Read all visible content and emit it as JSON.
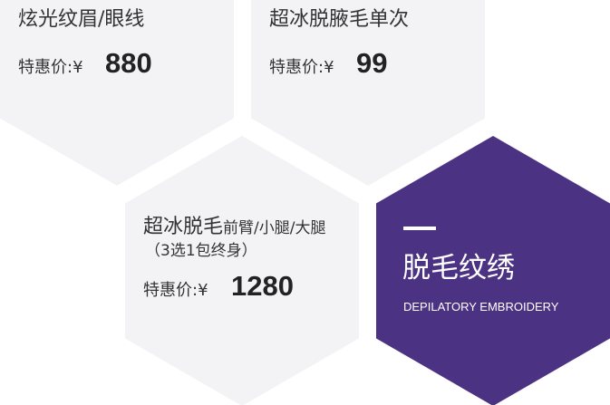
{
  "cards": [
    {
      "title": "炫光纹眉/眼线",
      "price_label": "特惠价:¥",
      "price": 880
    },
    {
      "title": "超冰脱腋毛单次",
      "price_label": "特惠价:¥",
      "price": 99
    },
    {
      "title": "超冰脱毛",
      "title_suffix": "前臂/小腿/大腿",
      "subtitle": "（3选1包终身）",
      "price_label": "特惠价:¥",
      "price": 1280
    }
  ],
  "featured": {
    "title": "脱毛纹绣",
    "subtitle": "DEPILATORY EMBROIDERY"
  }
}
